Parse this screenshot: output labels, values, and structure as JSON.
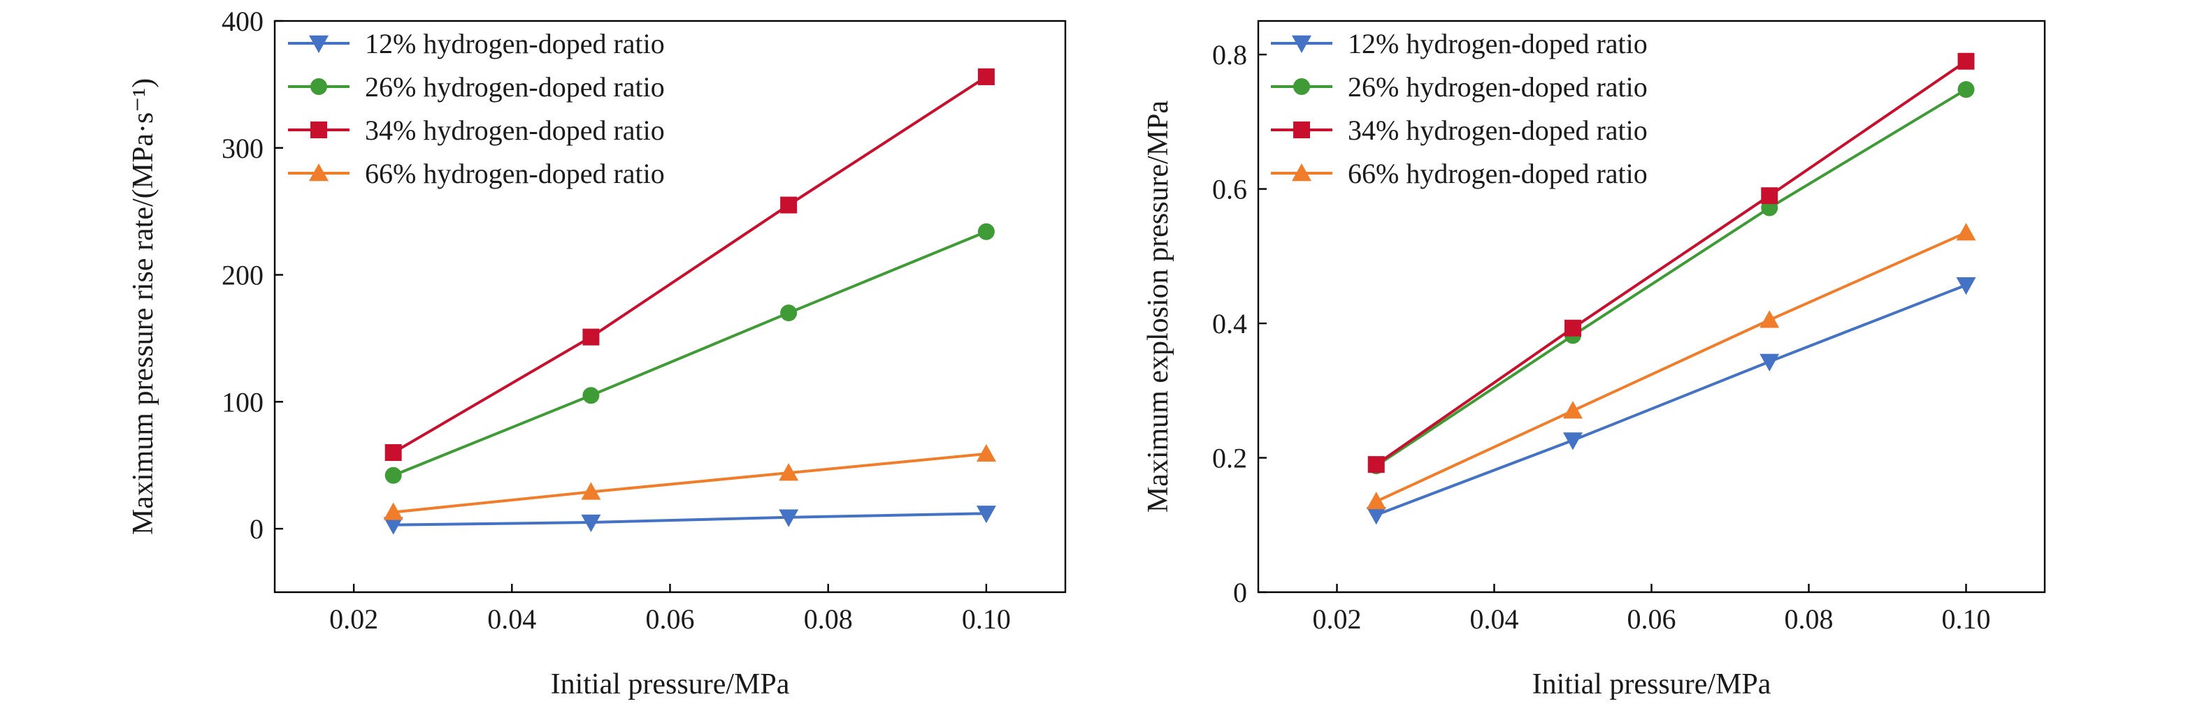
{
  "chart_data": [
    {
      "type": "line",
      "xlabel": "Initial pressure/MPa",
      "ylabel": "Maximum pressure rise rate/(MPa·s⁻¹)",
      "xlim": [
        0.01,
        0.11
      ],
      "ylim": [
        -50,
        400
      ],
      "xticks": [
        "0.02",
        "0.04",
        "0.06",
        "0.08",
        "0.10"
      ],
      "xtick_values": [
        0.02,
        0.04,
        0.06,
        0.08,
        0.1
      ],
      "yticks": [
        "0",
        "100",
        "200",
        "300",
        "400"
      ],
      "ytick_values": [
        0,
        100,
        200,
        300,
        400
      ],
      "grid": false,
      "legend_position": "top-left",
      "x": [
        0.025,
        0.05,
        0.075,
        0.1
      ],
      "series": [
        {
          "name": "12% hydrogen-doped ratio",
          "values": [
            3,
            5,
            9,
            12
          ],
          "color": "#4472c4",
          "marker": "triangle-down"
        },
        {
          "name": "26% hydrogen-doped ratio",
          "values": [
            42,
            105,
            170,
            234
          ],
          "color": "#3f9b35",
          "marker": "circle"
        },
        {
          "name": "34% hydrogen-doped ratio",
          "values": [
            60,
            151,
            255,
            356
          ],
          "color": "#c8102e",
          "marker": "square"
        },
        {
          "name": "66% hydrogen-doped ratio",
          "values": [
            13,
            29,
            44,
            59
          ],
          "color": "#f07d2a",
          "marker": "triangle-up"
        }
      ]
    },
    {
      "type": "line",
      "xlabel": "Initial pressure/MPa",
      "ylabel": "Maximum explosion pressure/MPa",
      "xlim": [
        0.01,
        0.11
      ],
      "ylim": [
        0,
        0.85
      ],
      "xticks": [
        "0.02",
        "0.04",
        "0.06",
        "0.08",
        "0.10"
      ],
      "xtick_values": [
        0.02,
        0.04,
        0.06,
        0.08,
        0.1
      ],
      "yticks": [
        "0",
        "0.2",
        "0.4",
        "0.6",
        "0.8"
      ],
      "ytick_values": [
        0,
        0.2,
        0.4,
        0.6,
        0.8
      ],
      "grid": false,
      "legend_position": "top-left",
      "x": [
        0.025,
        0.05,
        0.075,
        0.1
      ],
      "series": [
        {
          "name": "12% hydrogen-doped ratio",
          "values": [
            0.115,
            0.226,
            0.343,
            0.457
          ],
          "color": "#4472c4",
          "marker": "triangle-down"
        },
        {
          "name": "26% hydrogen-doped ratio",
          "values": [
            0.188,
            0.382,
            0.572,
            0.748
          ],
          "color": "#3f9b35",
          "marker": "circle"
        },
        {
          "name": "34% hydrogen-doped ratio",
          "values": [
            0.19,
            0.393,
            0.59,
            0.79
          ],
          "color": "#c8102e",
          "marker": "square"
        },
        {
          "name": "66% hydrogen-doped ratio",
          "values": [
            0.135,
            0.27,
            0.405,
            0.535
          ],
          "color": "#f07d2a",
          "marker": "triangle-up"
        }
      ]
    }
  ]
}
